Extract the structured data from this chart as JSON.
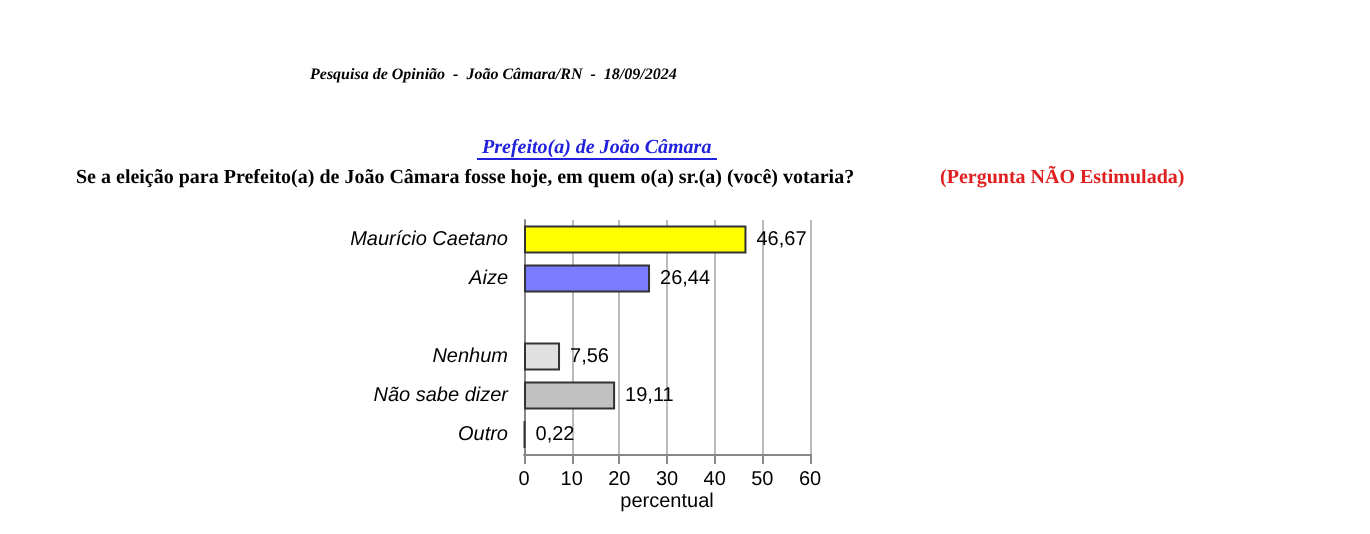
{
  "chart_data": {
    "type": "bar",
    "orientation": "horizontal",
    "title": "Pesquisa de Opinião  -  João Câmara/RN  -  18/09/2024",
    "subtitle": "Prefeito(a) de João Câmara",
    "annotations": [
      "Se a eleição para Prefeito(a) de João Câmara fosse hoje, em quem o(a) sr.(a) (você) votaria?",
      "(Pergunta NÃO Estimulada)"
    ],
    "xlabel": "percentual",
    "categories": [
      "Maurício Caetano",
      "Aize",
      null,
      "Nenhum",
      "Não sabe dizer",
      "Outro"
    ],
    "values": [
      46.67,
      26.44,
      null,
      7.56,
      19.11,
      0.22
    ],
    "value_labels": [
      "46,67",
      "26,44",
      null,
      "7,56",
      "19,11",
      "0,22"
    ],
    "colors": [
      "#ffff00",
      "#7b7bff",
      "#ffffff",
      "#e0e0e0",
      "#c0c0c0",
      "#404040"
    ],
    "xlim": [
      0,
      60
    ],
    "xticks": [
      0,
      10,
      20,
      30,
      40,
      50,
      60
    ],
    "grid": "x"
  }
}
